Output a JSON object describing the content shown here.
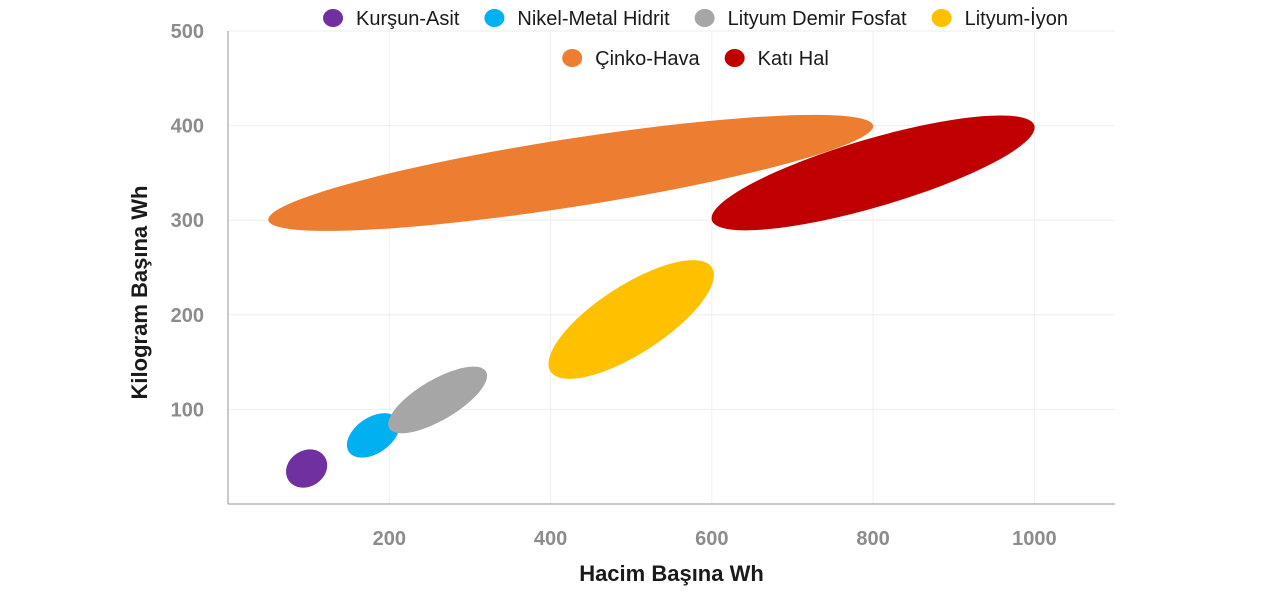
{
  "chart_data": {
    "type": "scatter",
    "xlabel": "Hacim Başına Wh",
    "ylabel": "Kilogram Başına Wh",
    "xlim": [
      0,
      1100
    ],
    "ylim": [
      0,
      500
    ],
    "x_ticks": [
      200,
      400,
      600,
      800,
      1000
    ],
    "y_ticks": [
      100,
      200,
      300,
      400,
      500
    ],
    "grid": true,
    "legend_position": "top",
    "series": [
      {
        "name": "Kurşun-Asit",
        "color": "#7030A0",
        "x_range": [
          75,
          120
        ],
        "y_range": [
          25,
          50
        ],
        "center": [
          90,
          35
        ]
      },
      {
        "name": "Nikel-Metal Hidrit",
        "color": "#00B0F0",
        "x_range": [
          150,
          210
        ],
        "y_range": [
          55,
          90
        ],
        "center": [
          180,
          70
        ]
      },
      {
        "name": "Lityum Demir Fosfat",
        "color": "#A6A6A6",
        "x_range": [
          200,
          320
        ],
        "y_range": [
          80,
          140
        ],
        "center": [
          260,
          110
        ]
      },
      {
        "name": "Lityum-İyon",
        "color": "#FFC000",
        "x_range": [
          400,
          600
        ],
        "y_range": [
          140,
          250
        ],
        "center": [
          500,
          195
        ]
      },
      {
        "name": "Çinko-Hava",
        "color": "#ED7D31",
        "x_range": [
          50,
          800
        ],
        "y_range": [
          300,
          400
        ],
        "center": [
          430,
          350
        ]
      },
      {
        "name": "Katı Hal",
        "color": "#C00000",
        "x_range": [
          600,
          1000
        ],
        "y_range": [
          300,
          400
        ],
        "center": [
          825,
          350
        ]
      }
    ]
  }
}
